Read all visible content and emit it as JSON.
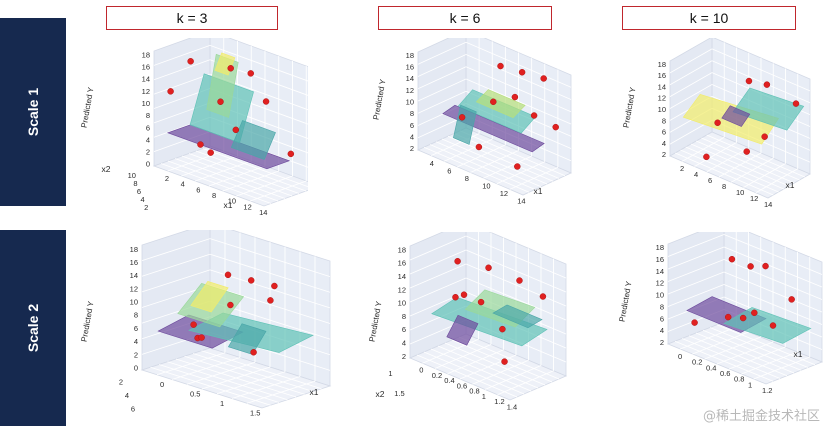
{
  "rows": [
    {
      "label": "Scale 1"
    },
    {
      "label": "Scale 2"
    }
  ],
  "columns": [
    {
      "label": "k = 3"
    },
    {
      "label": "k = 6"
    },
    {
      "label": "k = 10"
    }
  ],
  "watermark": "@稀土掘金技术社区",
  "colors": {
    "row_label_bg": "#16294f",
    "k_border": "#c0272d",
    "points": "#e02020",
    "surface_low": "#6d4a9c",
    "surface_mid": "#5fc2b6",
    "surface_high": "#f2ec6a"
  },
  "chart_data": [
    {
      "type": "scatter3d-surface",
      "title": "k = 3",
      "row": "Scale 1",
      "zlabel": "Predicted Y",
      "xlabel": "x1",
      "ylabel": "x2",
      "z_ticks": [
        "18",
        "16",
        "14",
        "12",
        "10",
        "8",
        "6",
        "4",
        "2",
        "0"
      ],
      "x_ticks": [
        "2",
        "4",
        "6",
        "8",
        "10",
        "12",
        "14"
      ],
      "y_ticks": [
        "10",
        "8",
        "6",
        "4",
        "2"
      ],
      "points": [
        [
          4,
          4,
          17
        ],
        [
          6,
          6,
          16.5
        ],
        [
          7,
          7,
          16
        ],
        [
          10,
          4,
          15
        ],
        [
          3,
          3,
          12
        ],
        [
          4,
          8,
          9
        ],
        [
          7,
          5,
          8
        ],
        [
          9,
          9,
          4
        ],
        [
          5,
          5,
          3
        ],
        [
          3,
          7,
          2
        ]
      ]
    },
    {
      "type": "scatter3d-surface",
      "title": "k = 6",
      "row": "Scale 1",
      "zlabel": "Predicted Y",
      "xlabel": "x1",
      "ylabel": "",
      "z_ticks": [
        "18",
        "16",
        "14",
        "12",
        "10",
        "8",
        "6",
        "4",
        "2"
      ],
      "x_ticks": [
        "4",
        "6",
        "8",
        "10",
        "12",
        "14"
      ],
      "y_ticks": [],
      "points": [
        [
          10,
          5,
          18
        ],
        [
          11,
          6,
          17
        ],
        [
          12,
          7,
          16
        ],
        [
          12,
          4,
          15
        ],
        [
          11,
          3,
          14
        ],
        [
          12,
          6,
          10
        ],
        [
          13,
          7,
          8
        ],
        [
          6,
          6,
          4
        ],
        [
          9,
          4,
          3
        ],
        [
          13,
          3,
          4
        ]
      ]
    },
    {
      "type": "scatter3d-surface",
      "title": "k = 10",
      "row": "Scale 1",
      "zlabel": "Predicted Y",
      "xlabel": "x1",
      "ylabel": "",
      "z_ticks": [
        "18",
        "16",
        "14",
        "12",
        "10",
        "8",
        "6",
        "4",
        "2"
      ],
      "x_ticks": [
        "2",
        "4",
        "6",
        "8",
        "10",
        "12",
        "14"
      ],
      "y_ticks": [],
      "points": [
        [
          8,
          6,
          16
        ],
        [
          9,
          7,
          15.5
        ],
        [
          11,
          8,
          13
        ],
        [
          10,
          5,
          8
        ],
        [
          9,
          4,
          5
        ],
        [
          6,
          3,
          2
        ],
        [
          4,
          8,
          3
        ]
      ]
    },
    {
      "type": "scatter3d-surface",
      "title": "k = 3",
      "row": "Scale 2",
      "zlabel": "Predicted Y",
      "xlabel": "x1",
      "ylabel": "",
      "z_ticks": [
        "18",
        "16",
        "14",
        "12",
        "10",
        "8",
        "6",
        "4",
        "2",
        "0"
      ],
      "x_ticks": [
        "0",
        "0.5",
        "1",
        "1.5"
      ],
      "y_ticks": [
        "2",
        "4",
        "6"
      ],
      "points": [
        [
          1,
          3,
          17
        ],
        [
          1.1,
          4,
          16
        ],
        [
          1.2,
          5,
          15
        ],
        [
          1.3,
          4,
          14
        ],
        [
          0.6,
          6,
          9
        ],
        [
          0.5,
          4,
          7
        ],
        [
          0.4,
          5,
          4
        ],
        [
          0.3,
          6,
          3
        ],
        [
          0.7,
          7,
          2
        ]
      ]
    },
    {
      "type": "scatter3d-surface",
      "title": "k = 6",
      "row": "Scale 2",
      "zlabel": "Predicted Y",
      "xlabel": "",
      "ylabel": "x2",
      "z_ticks": [
        "18",
        "16",
        "14",
        "12",
        "10",
        "8",
        "6",
        "4",
        "2"
      ],
      "x_ticks": [
        "0",
        "0.2",
        "0.4",
        "0.6",
        "0.8",
        "1",
        "1.2",
        "1.4"
      ],
      "y_ticks": [
        "1",
        "1.5"
      ],
      "points": [
        [
          0.6,
          0.8,
          18
        ],
        [
          0.7,
          1,
          17
        ],
        [
          0.8,
          1.2,
          15
        ],
        [
          0.9,
          1.3,
          13
        ],
        [
          0.7,
          0.9,
          12
        ],
        [
          0.5,
          1.1,
          10
        ],
        [
          0.4,
          1.2,
          8
        ],
        [
          0.6,
          1.4,
          4
        ],
        [
          0.8,
          1,
          3
        ]
      ]
    },
    {
      "type": "scatter3d-surface",
      "title": "k = 10",
      "row": "Scale 2",
      "zlabel": "Predicted Y",
      "xlabel": "x1",
      "ylabel": "",
      "z_ticks": [
        "18",
        "16",
        "14",
        "12",
        "10",
        "8",
        "6",
        "4",
        "2"
      ],
      "x_ticks": [
        "0",
        "0.2",
        "0.4",
        "0.6",
        "0.8",
        "1",
        "1.2"
      ],
      "y_ticks": [],
      "points": [
        [
          0.5,
          0.5,
          17
        ],
        [
          0.6,
          0.6,
          16
        ],
        [
          0.6,
          0.8,
          15
        ],
        [
          0.9,
          0.7,
          12
        ],
        [
          0.7,
          0.5,
          9
        ],
        [
          0.8,
          0.6,
          7
        ],
        [
          0.3,
          0.3,
          5
        ],
        [
          0.4,
          0.8,
          4
        ],
        [
          0.2,
          0.9,
          2
        ]
      ]
    }
  ]
}
